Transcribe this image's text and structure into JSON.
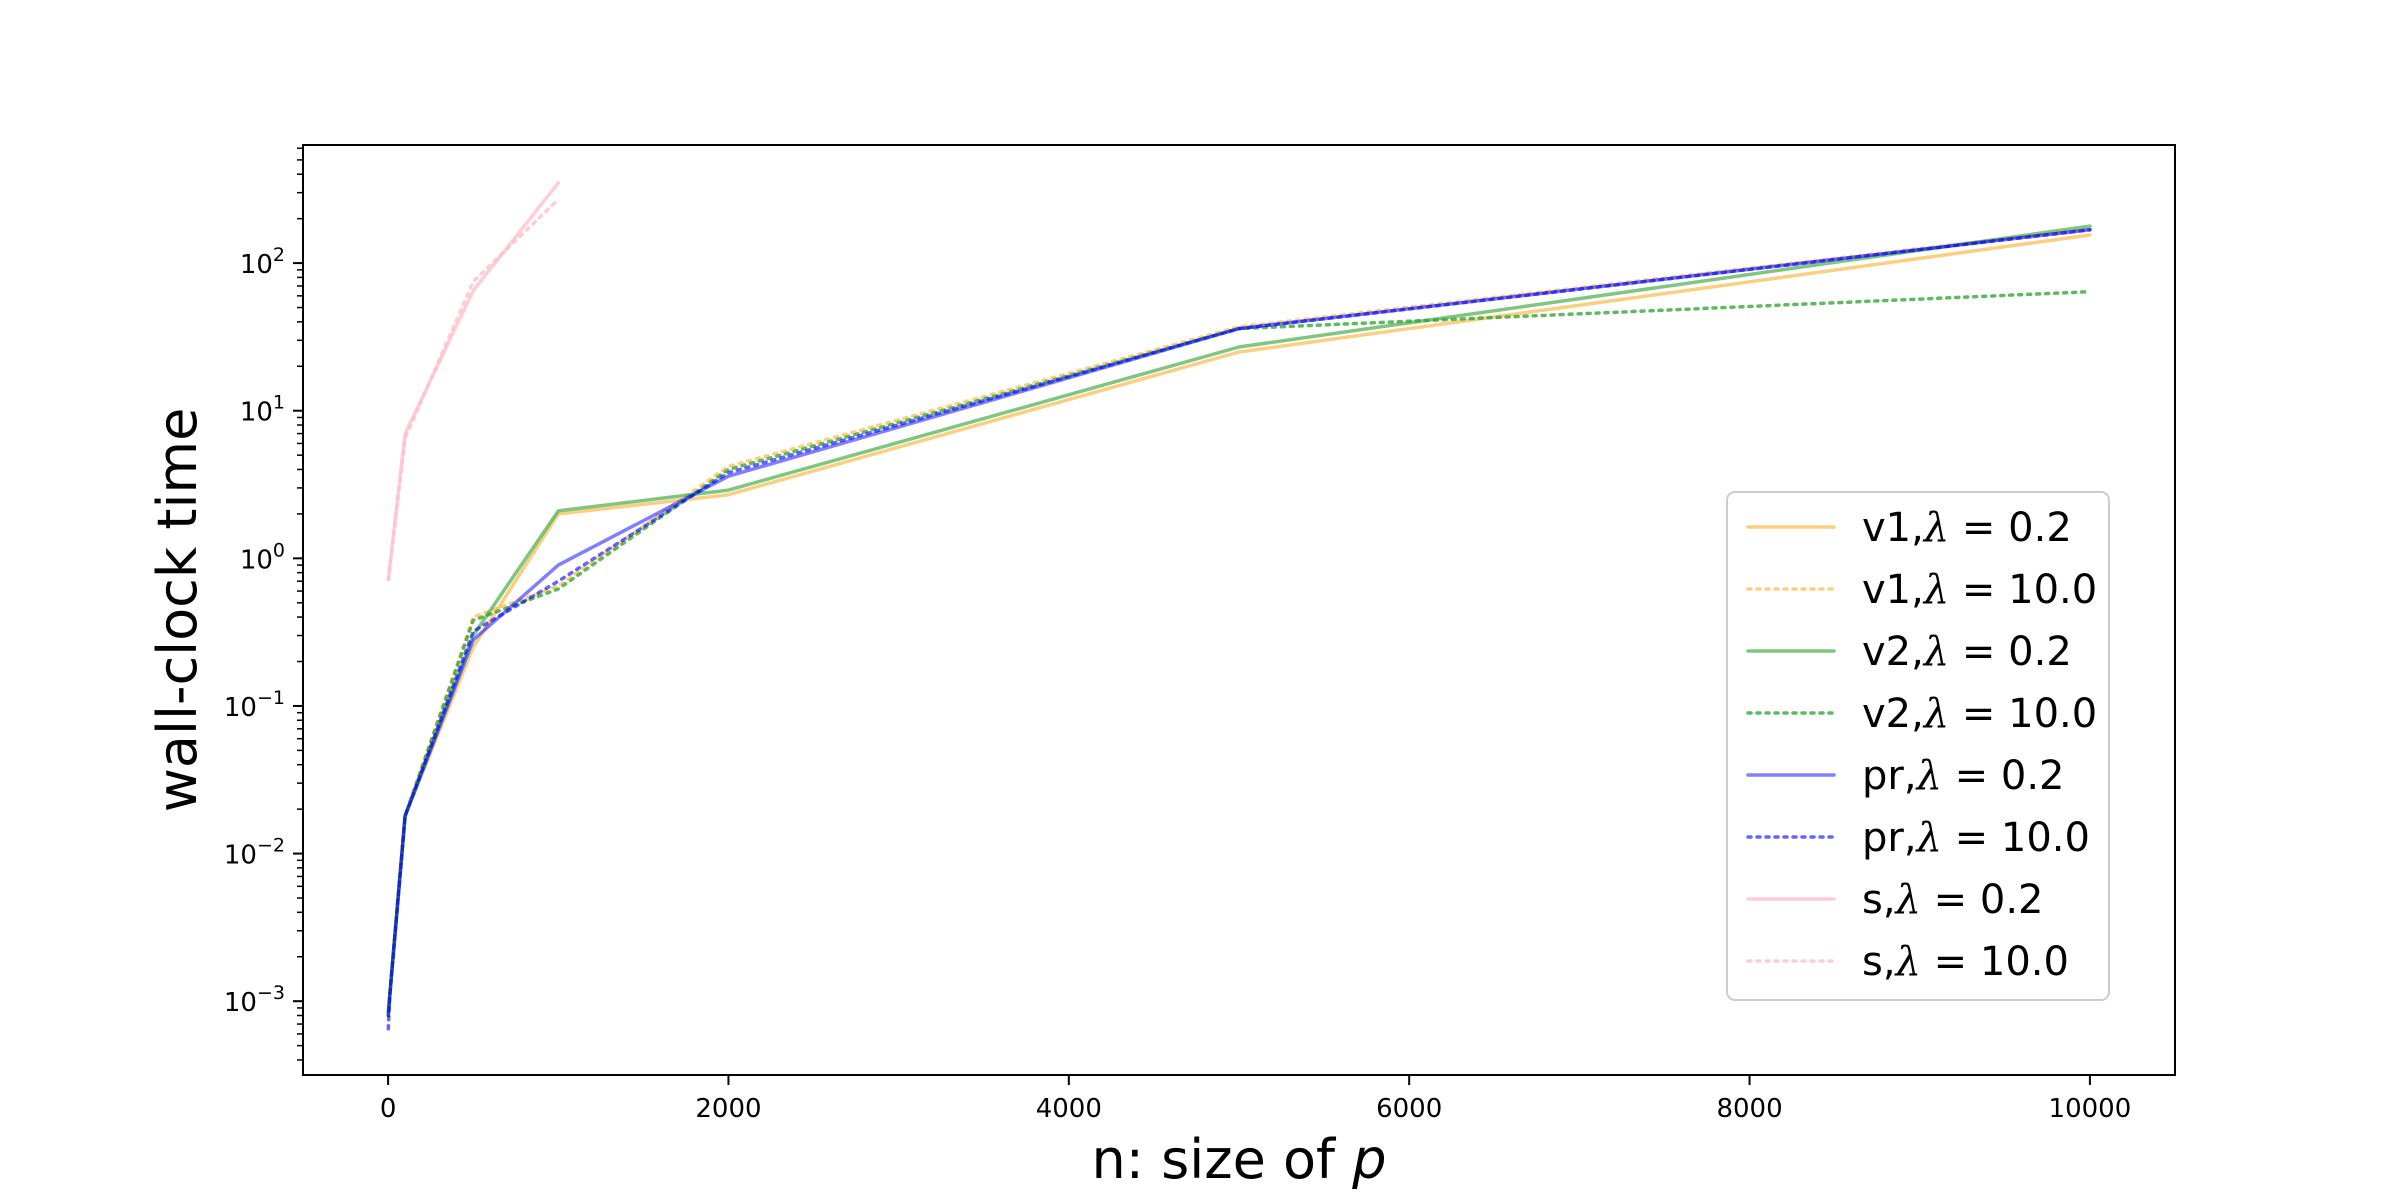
{
  "chart_data": {
    "type": "line",
    "title": "",
    "xlabel": "n: size of ",
    "xlabel_var": "p",
    "ylabel": "wall-clock time",
    "xlim": [
      -500,
      10500
    ],
    "ylim_log10": [
      -3.5,
      2.8
    ],
    "yscale": "log",
    "grid": false,
    "legend_placement": "lower-right",
    "x_ticks": [
      0,
      2000,
      4000,
      6000,
      8000,
      10000
    ],
    "x_tick_labels": [
      "0",
      "2000",
      "4000",
      "6000",
      "8000",
      "10000"
    ],
    "y_tick_exponents": [
      -3,
      -2,
      -1,
      0,
      1,
      2
    ],
    "y_tick_labels": [
      "-3",
      "-2",
      "-1",
      "0",
      "1",
      "2"
    ],
    "y_tick_base": "10",
    "series": [
      {
        "name": "v1,λ = 0.2",
        "legend_prefix": "v1,",
        "legend_value": "0.2",
        "color": "#f5b02f",
        "dash": "solid",
        "opacity": 0.6,
        "x": [
          1,
          10,
          100,
          500,
          1000,
          2000,
          5000,
          10000
        ],
        "y": [
          0.00085,
          0.0011,
          0.018,
          0.25,
          2.0,
          2.7,
          25,
          155
        ]
      },
      {
        "name": "v1,λ = 10.0",
        "legend_prefix": "v1,",
        "legend_value": "10.0",
        "color": "#f5b02f",
        "dash": "dotted",
        "opacity": 0.6,
        "x": [
          1,
          10,
          100,
          500,
          1000,
          2000,
          5000,
          10000
        ],
        "y": [
          0.0008,
          0.0011,
          0.018,
          0.4,
          0.65,
          4.2,
          37,
          170
        ]
      },
      {
        "name": "v2,λ = 0.2",
        "legend_prefix": "v2,",
        "legend_value": "0.2",
        "color": "#2ca02c",
        "dash": "solid",
        "opacity": 0.6,
        "x": [
          1,
          10,
          100,
          500,
          1000,
          2000,
          5000,
          10000
        ],
        "y": [
          0.00085,
          0.0011,
          0.018,
          0.3,
          2.1,
          2.9,
          27,
          178
        ]
      },
      {
        "name": "v2,λ = 10.0",
        "legend_prefix": "v2,",
        "legend_value": "10.0",
        "color": "#2ca02c",
        "dash": "dotted",
        "opacity": 0.75,
        "x": [
          1,
          10,
          100,
          500,
          1000,
          2000,
          5000,
          10000
        ],
        "y": [
          0.0008,
          0.0011,
          0.018,
          0.38,
          0.62,
          4.0,
          36,
          64
        ]
      },
      {
        "name": "pr,λ = 0.2",
        "legend_prefix": "pr,",
        "legend_value": "0.2",
        "color": "#0000ff",
        "dash": "solid",
        "opacity": 0.5,
        "x": [
          1,
          10,
          100,
          500,
          1000,
          2000,
          5000,
          10000
        ],
        "y": [
          0.0008,
          0.0011,
          0.018,
          0.28,
          0.9,
          3.6,
          36,
          168
        ]
      },
      {
        "name": "pr,λ = 10.0",
        "legend_prefix": "pr,",
        "legend_value": "10.0",
        "color": "#0000ff",
        "dash": "dotted",
        "opacity": 0.6,
        "x": [
          1,
          10,
          100,
          500,
          1000,
          2000,
          5000,
          10000
        ],
        "y": [
          0.00065,
          0.0011,
          0.018,
          0.32,
          0.7,
          3.8,
          36,
          168
        ]
      },
      {
        "name": "s,λ = 0.2",
        "legend_prefix": "s,",
        "legend_value": "0.2",
        "color": "#ffc0cb",
        "dash": "solid",
        "opacity": 0.8,
        "x": [
          1,
          100,
          500,
          1000
        ],
        "y": [
          0.72,
          7.0,
          65,
          350
        ]
      },
      {
        "name": "s,λ = 10.0",
        "legend_prefix": "s,",
        "legend_value": "10.0",
        "color": "#ffc0cb",
        "dash": "dotted",
        "opacity": 0.8,
        "x": [
          1,
          100,
          500,
          1000
        ],
        "y": [
          0.72,
          6.5,
          75,
          270
        ]
      }
    ]
  }
}
